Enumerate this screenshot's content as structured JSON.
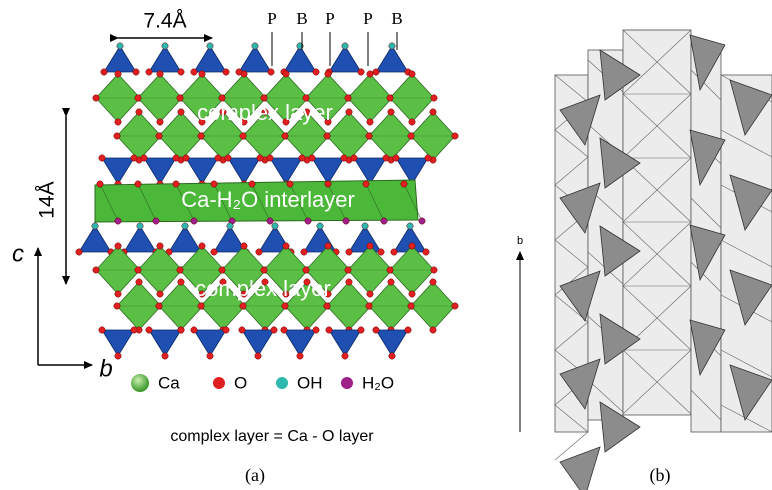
{
  "panel_a": {
    "spacing_label": "7.4Å",
    "site_labels": [
      "P",
      "B",
      "P",
      "P",
      "B"
    ],
    "layers": [
      "complex layer",
      "Ca-H₂O interlayer",
      "complex layer"
    ],
    "thickness_label": "14Å",
    "axis_vertical": "c",
    "axis_horizontal": "b",
    "legend": [
      "Ca",
      "O",
      "OH",
      "H₂O"
    ],
    "note": "complex layer = Ca - O layer",
    "label": "(a)"
  },
  "panel_b": {
    "axis_label": "b",
    "label": "(b)"
  }
}
